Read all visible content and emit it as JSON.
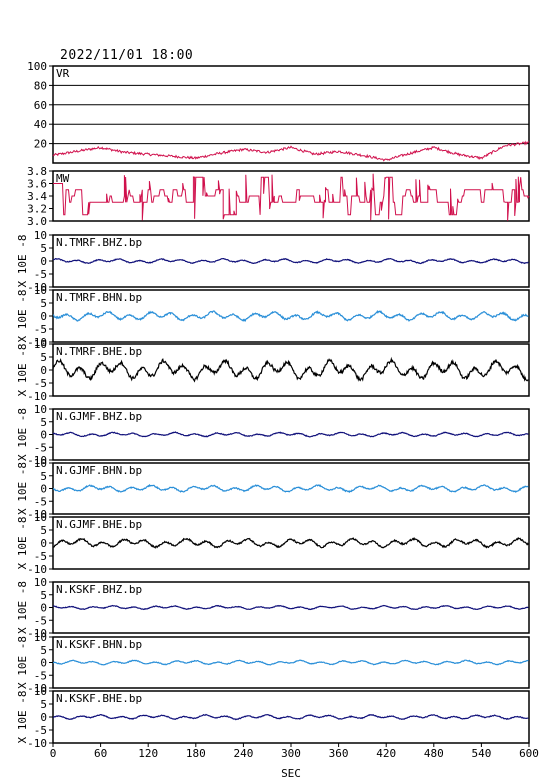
{
  "header": {
    "datetime": "2022/11/01 18:00"
  },
  "colors": {
    "magenta": "#d0104c",
    "navy": "#10107a",
    "lightblue": "#2a8fd8",
    "black": "#000000"
  },
  "chart_data": {
    "type": "line",
    "x_axis": {
      "label": "SEC",
      "range": [
        0,
        600
      ],
      "ticks": [
        "0",
        "60",
        "120",
        "180",
        "240",
        "300",
        "360",
        "420",
        "480",
        "540",
        "600"
      ]
    },
    "shared_ylabel": "X 10E -8",
    "panels": [
      {
        "id": "VR",
        "label": "VR",
        "ylim": [
          0,
          100
        ],
        "ticks": [
          "100",
          "80",
          "60",
          "40",
          "20"
        ],
        "color": "#d0104c",
        "kind": "vr",
        "key_points": [
          [
            0,
            8
          ],
          [
            30,
            12
          ],
          [
            60,
            16
          ],
          [
            90,
            11
          ],
          [
            120,
            9
          ],
          [
            150,
            7
          ],
          [
            180,
            5
          ],
          [
            210,
            10
          ],
          [
            240,
            14
          ],
          [
            270,
            11
          ],
          [
            300,
            16
          ],
          [
            330,
            9
          ],
          [
            360,
            12
          ],
          [
            390,
            8
          ],
          [
            420,
            3
          ],
          [
            450,
            10
          ],
          [
            480,
            16
          ],
          [
            510,
            9
          ],
          [
            540,
            5
          ],
          [
            570,
            18
          ],
          [
            600,
            21
          ]
        ]
      },
      {
        "id": "MW",
        "label": "MW",
        "ylim": [
          3.0,
          3.8
        ],
        "ticks": [
          "3.8",
          "3.6",
          "3.4",
          "3.2",
          "3.0"
        ],
        "color": "#d0104c",
        "kind": "mw"
      },
      {
        "id": "TMRF_BHZ",
        "label": "N.TMRF.BHZ.bp",
        "ylim": [
          -10,
          10
        ],
        "ticks": [
          "10",
          "5",
          "0",
          "-5",
          "-10"
        ],
        "color": "#10107a",
        "amp": 0.6
      },
      {
        "id": "TMRF_BHN",
        "label": "N.TMRF.BHN.bp",
        "ylim": [
          -10,
          10
        ],
        "ticks": [
          "10",
          "5",
          "0",
          "-5",
          "-10"
        ],
        "color": "#2a8fd8",
        "amp": 1.2
      },
      {
        "id": "TMRF_BHE",
        "label": "N.TMRF.BHE.bp",
        "ylim": [
          -10,
          10
        ],
        "ticks": [
          "10",
          "5",
          "0",
          "-5",
          "-10"
        ],
        "color": "#000000",
        "amp": 2.6
      },
      {
        "id": "GJMF_BHZ",
        "label": "N.GJMF.BHZ.bp",
        "ylim": [
          -10,
          10
        ],
        "ticks": [
          "10",
          "5",
          "0",
          "-5",
          "-10"
        ],
        "color": "#10107a",
        "amp": 0.6
      },
      {
        "id": "GJMF_BHN",
        "label": "N.GJMF.BHN.bp",
        "ylim": [
          -10,
          10
        ],
        "ticks": [
          "10",
          "5",
          "0",
          "-5",
          "-10"
        ],
        "color": "#2a8fd8",
        "amp": 0.9
      },
      {
        "id": "GJMF_BHE",
        "label": "N.GJMF.BHE.bp",
        "ylim": [
          -10,
          10
        ],
        "ticks": [
          "10",
          "5",
          "0",
          "-5",
          "-10"
        ],
        "color": "#000000",
        "amp": 1.2
      },
      {
        "id": "KSKF_BHZ",
        "label": "N.KSKF.BHZ.bp",
        "ylim": [
          -10,
          10
        ],
        "ticks": [
          "10",
          "5",
          "0",
          "-5",
          "-10"
        ],
        "color": "#10107a",
        "amp": 0.5
      },
      {
        "id": "KSKF_BHN",
        "label": "N.KSKF.BHN.bp",
        "ylim": [
          -10,
          10
        ],
        "ticks": [
          "10",
          "5",
          "0",
          "-5",
          "-10"
        ],
        "color": "#2a8fd8",
        "amp": 0.6
      },
      {
        "id": "KSKF_BHE",
        "label": "N.KSKF.BHE.bp",
        "ylim": [
          -10,
          10
        ],
        "ticks": [
          "10",
          "5",
          "0",
          "-5",
          "-10"
        ],
        "color": "#10107a",
        "amp": 0.6
      }
    ]
  }
}
